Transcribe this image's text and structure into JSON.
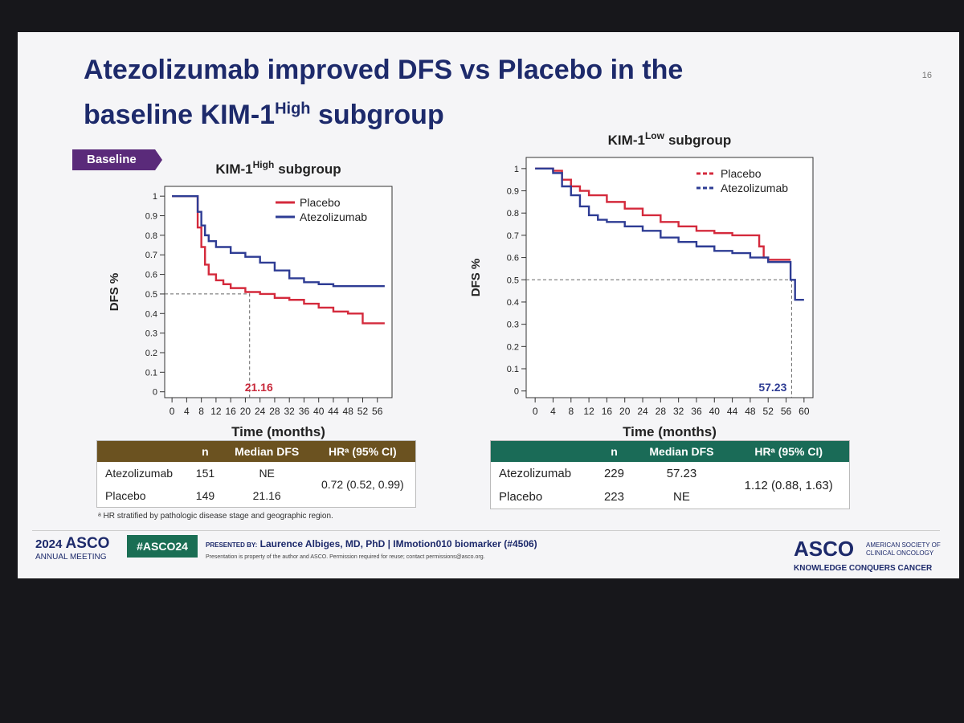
{
  "slide": {
    "page_number": "16",
    "title_line1": "Atezolizumab improved DFS vs Placebo in the",
    "title_line2": "baseline KIM-1",
    "title_line2_sup": "High",
    "title_line2_suffix": "subgroup",
    "tag": "Baseline",
    "footnote": "ᵃ HR stratified by pathologic disease stage and geographic region.",
    "meeting_year": "2024",
    "meeting_name": "ASCO",
    "meeting_sub": "ANNUAL MEETING",
    "hashtag": "#ASCO24",
    "presented_by": "PRESENTED BY:",
    "presenter": "Laurence Albiges, MD, PhD  |  IMmotion010 biomarker (#4506)",
    "disclaimer": "Presentation is property of the author and ASCO. Permission required for reuse; contact permissions@asco.org.",
    "logo": "ASCO",
    "logo_sub": "AMERICAN SOCIETY OF CLINICAL ONCOLOGY",
    "tagline": "KNOWLEDGE CONQUERS CANCER"
  },
  "tables": [
    {
      "header": [
        "",
        "n",
        "Median DFS",
        "HRᵃ (95% CI)"
      ],
      "rows": [
        [
          "Atezolizumab",
          151,
          "NE"
        ],
        [
          "Placebo",
          149,
          21.16
        ]
      ],
      "hr": "0.72 (0.52, 0.99)"
    },
    {
      "header": [
        "",
        "n",
        "Median DFS",
        "HRᵃ (95% CI)"
      ],
      "rows": [
        [
          "Atezolizumab",
          229,
          57.23
        ],
        [
          "Placebo",
          223,
          "NE"
        ]
      ],
      "hr": "1.12 (0.88, 1.63)"
    }
  ],
  "chart_data": [
    {
      "type": "step",
      "title": "KIM-1",
      "title_sup": "High",
      "title_suffix": "subgroup",
      "x_label": "Time (months)",
      "y_label": "DFS %",
      "xlim": [
        -2,
        60
      ],
      "ylim": [
        -0.03,
        1.05
      ],
      "xticks": [
        0,
        4,
        8,
        12,
        16,
        20,
        24,
        28,
        32,
        36,
        40,
        44,
        48,
        52,
        56
      ],
      "yticks": [
        0,
        0.1,
        0.2,
        0.3,
        0.4,
        0.5,
        0.6,
        0.7,
        0.8,
        0.9,
        1
      ],
      "grid": false,
      "legend_position": "upper right",
      "legend_marker": "solid",
      "median": 21.16,
      "median_color": "#c8283a",
      "series": [
        {
          "name": "Placebo",
          "color": "#d42a3c",
          "x": [
            0,
            6,
            7,
            8,
            9,
            10,
            12,
            14,
            16,
            20,
            24,
            28,
            32,
            36,
            40,
            44,
            48,
            50,
            52,
            56,
            58
          ],
          "values": [
            1,
            1,
            0.84,
            0.74,
            0.65,
            0.6,
            0.57,
            0.55,
            0.53,
            0.51,
            0.5,
            0.48,
            0.47,
            0.45,
            0.43,
            0.41,
            0.4,
            0.4,
            0.35,
            0.35,
            0.35
          ]
        },
        {
          "name": "Atezolizumab",
          "color": "#2e3c94",
          "x": [
            0,
            6,
            7,
            8,
            9,
            10,
            12,
            16,
            20,
            24,
            28,
            32,
            36,
            40,
            44,
            48,
            52,
            56,
            58
          ],
          "values": [
            1,
            1,
            0.92,
            0.85,
            0.8,
            0.77,
            0.74,
            0.71,
            0.69,
            0.66,
            0.62,
            0.58,
            0.56,
            0.55,
            0.54,
            0.54,
            0.54,
            0.54,
            0.54
          ]
        }
      ]
    },
    {
      "type": "step",
      "title": "KIM-1",
      "title_sup": "Low",
      "title_suffix": "subgroup",
      "x_label": "Time (months)",
      "y_label": "DFS %",
      "xlim": [
        -2,
        62
      ],
      "ylim": [
        -0.03,
        1.05
      ],
      "xticks": [
        0,
        4,
        8,
        12,
        16,
        20,
        24,
        28,
        32,
        36,
        40,
        44,
        48,
        52,
        56,
        60
      ],
      "yticks": [
        0,
        0.1,
        0.2,
        0.3,
        0.4,
        0.5,
        0.6,
        0.7,
        0.8,
        0.9,
        1
      ],
      "grid": false,
      "legend_position": "upper right",
      "legend_marker": "dashed",
      "median": 57.23,
      "median_color": "#2e3c94",
      "series": [
        {
          "name": "Placebo",
          "color": "#d42a3c",
          "x": [
            0,
            2,
            4,
            6,
            8,
            10,
            12,
            16,
            20,
            24,
            28,
            32,
            36,
            40,
            44,
            48,
            50,
            51,
            52,
            56,
            57
          ],
          "values": [
            1,
            1,
            0.99,
            0.95,
            0.92,
            0.9,
            0.88,
            0.85,
            0.82,
            0.79,
            0.76,
            0.74,
            0.72,
            0.71,
            0.7,
            0.7,
            0.65,
            0.6,
            0.59,
            0.59,
            0.59
          ]
        },
        {
          "name": "Atezolizumab",
          "color": "#2e3c94",
          "x": [
            0,
            2,
            4,
            6,
            8,
            10,
            12,
            14,
            16,
            20,
            24,
            28,
            32,
            36,
            40,
            44,
            48,
            52,
            56,
            57,
            58,
            60
          ],
          "values": [
            1,
            1,
            0.98,
            0.92,
            0.88,
            0.83,
            0.79,
            0.77,
            0.76,
            0.74,
            0.72,
            0.69,
            0.67,
            0.65,
            0.63,
            0.62,
            0.6,
            0.58,
            0.58,
            0.5,
            0.41,
            0.41
          ]
        }
      ]
    }
  ]
}
